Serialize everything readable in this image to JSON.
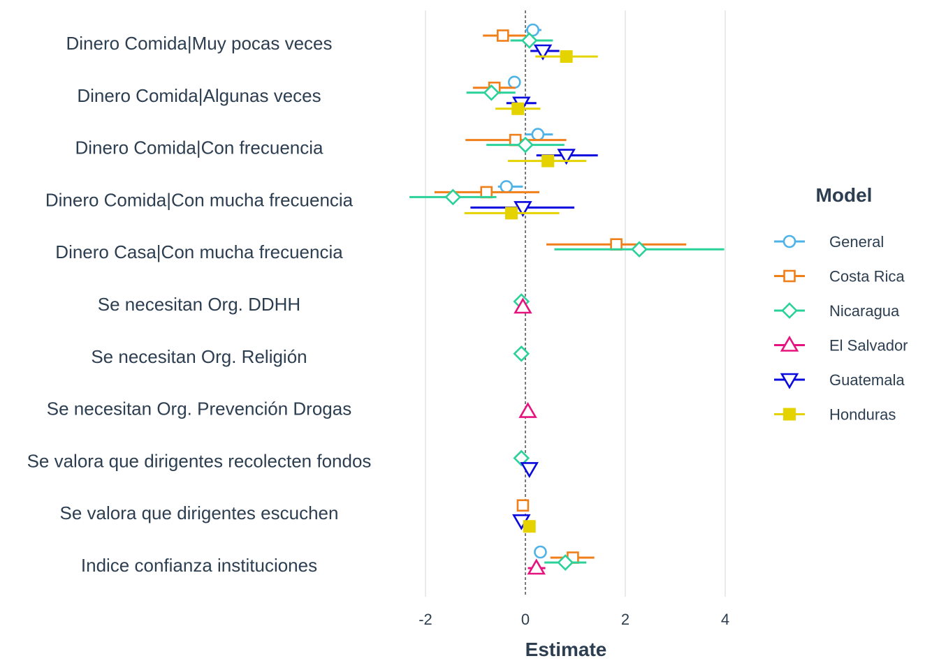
{
  "chart_data": {
    "type": "coefficient-plot",
    "xlabel": "Estimate",
    "xlim": [
      -2.75,
      4.25
    ],
    "xticks": [
      -2,
      0,
      2,
      4
    ],
    "reference_line": 0,
    "legend": {
      "title": "Model",
      "placement": "right"
    },
    "categories": [
      "Dinero Comida|Muy pocas veces",
      "Dinero Comida|Algunas veces",
      "Dinero Comida|Con frecuencia",
      "Dinero Comida|Con mucha frecuencia",
      "Dinero Casa|Con mucha frecuencia",
      "Se necesitan Org. DDHH",
      "Se necesitan Org. Religión",
      "Se necesitan Org. Prevención Drogas",
      "Se valora que dirigentes recolecten fondos",
      "Se valora que dirigentes escuchen",
      "Indice confianza instituciones"
    ],
    "series": [
      {
        "name": "General",
        "color": "#4FB3E8",
        "shape": "circle",
        "points": [
          {
            "cat": 0,
            "est": 0.15,
            "lo": 0.0,
            "hi": 0.32
          },
          {
            "cat": 1,
            "est": -0.22,
            "lo": -0.32,
            "hi": -0.1
          },
          {
            "cat": 2,
            "est": 0.25,
            "lo": 0.0,
            "hi": 0.55
          },
          {
            "cat": 3,
            "est": -0.38,
            "lo": -0.55,
            "hi": -0.05
          },
          {
            "cat": 10,
            "est": 0.3,
            "lo": 0.2,
            "hi": 0.4
          }
        ]
      },
      {
        "name": "Costa Rica",
        "color": "#F07F1A",
        "shape": "square",
        "points": [
          {
            "cat": 0,
            "est": -0.45,
            "lo": -0.85,
            "hi": 0.0
          },
          {
            "cat": 1,
            "est": -0.62,
            "lo": -1.05,
            "hi": -0.2
          },
          {
            "cat": 2,
            "est": -0.2,
            "lo": -1.2,
            "hi": 0.82
          },
          {
            "cat": 3,
            "est": -0.78,
            "lo": -1.82,
            "hi": 0.28
          },
          {
            "cat": 4,
            "est": 1.82,
            "lo": 0.42,
            "hi": 3.22
          },
          {
            "cat": 9,
            "est": -0.05,
            "lo": -0.15,
            "hi": 0.05
          },
          {
            "cat": 10,
            "est": 0.95,
            "lo": 0.5,
            "hi": 1.38
          }
        ]
      },
      {
        "name": "Nicaragua",
        "color": "#2AD199",
        "shape": "diamond",
        "points": [
          {
            "cat": 0,
            "est": 0.08,
            "lo": -0.3,
            "hi": 0.55
          },
          {
            "cat": 1,
            "est": -0.68,
            "lo": -1.18,
            "hi": -0.2
          },
          {
            "cat": 2,
            "est": 0.0,
            "lo": -0.78,
            "hi": 0.78
          },
          {
            "cat": 3,
            "est": -1.45,
            "lo": -2.32,
            "hi": -0.58
          },
          {
            "cat": 4,
            "est": 2.28,
            "lo": 0.58,
            "hi": 3.98
          },
          {
            "cat": 5,
            "est": -0.08,
            "lo": -0.12,
            "hi": -0.04
          },
          {
            "cat": 6,
            "est": -0.08,
            "lo": -0.12,
            "hi": -0.04
          },
          {
            "cat": 8,
            "est": -0.08,
            "lo": -0.12,
            "hi": -0.04
          },
          {
            "cat": 10,
            "est": 0.8,
            "lo": 0.38,
            "hi": 1.22
          }
        ]
      },
      {
        "name": "El Salvador",
        "color": "#E6137F",
        "shape": "triangle-up",
        "points": [
          {
            "cat": 5,
            "est": -0.05,
            "lo": -0.1,
            "hi": 0.0
          },
          {
            "cat": 7,
            "est": 0.05,
            "lo": 0.0,
            "hi": 0.1
          },
          {
            "cat": 10,
            "est": 0.22,
            "lo": 0.05,
            "hi": 0.4
          }
        ]
      },
      {
        "name": "Guatemala",
        "color": "#0A0ADE",
        "shape": "triangle-down",
        "points": [
          {
            "cat": 0,
            "est": 0.35,
            "lo": 0.1,
            "hi": 0.68
          },
          {
            "cat": 1,
            "est": -0.08,
            "lo": -0.38,
            "hi": 0.22
          },
          {
            "cat": 2,
            "est": 0.82,
            "lo": 0.22,
            "hi": 1.45
          },
          {
            "cat": 3,
            "est": -0.05,
            "lo": -1.1,
            "hi": 0.98
          },
          {
            "cat": 8,
            "est": 0.08,
            "lo": 0.03,
            "hi": 0.13
          },
          {
            "cat": 9,
            "est": -0.08,
            "lo": -0.13,
            "hi": -0.03
          }
        ]
      },
      {
        "name": "Honduras",
        "color": "#E5D300",
        "shape": "square-filled",
        "points": [
          {
            "cat": 0,
            "est": 0.82,
            "lo": 0.2,
            "hi": 1.45
          },
          {
            "cat": 1,
            "est": -0.15,
            "lo": -0.6,
            "hi": 0.3
          },
          {
            "cat": 2,
            "est": 0.45,
            "lo": -0.35,
            "hi": 1.22
          },
          {
            "cat": 3,
            "est": -0.28,
            "lo": -1.22,
            "hi": 0.68
          },
          {
            "cat": 9,
            "est": 0.08,
            "lo": 0.03,
            "hi": 0.13
          }
        ]
      }
    ]
  }
}
